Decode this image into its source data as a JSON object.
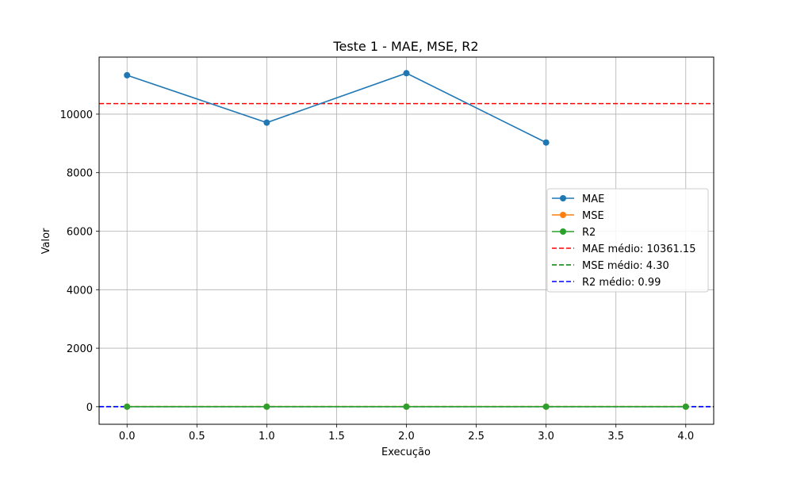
{
  "chart_data": {
    "type": "line",
    "title": "Teste 1 - MAE, MSE, R2",
    "xlabel": "Execução",
    "ylabel": "Valor",
    "xlim": [
      -0.2,
      4.2
    ],
    "ylim": [
      -600,
      11950
    ],
    "xticks": [
      0.0,
      0.5,
      1.0,
      1.5,
      2.0,
      2.5,
      3.0,
      3.5,
      4.0
    ],
    "xtick_labels": [
      "0.0",
      "0.5",
      "1.0",
      "1.5",
      "2.0",
      "2.5",
      "3.0",
      "3.5",
      "4.0"
    ],
    "yticks": [
      0,
      2000,
      4000,
      6000,
      8000,
      10000
    ],
    "ytick_labels": [
      "0",
      "2000",
      "4000",
      "6000",
      "8000",
      "10000"
    ],
    "grid": true,
    "legend_position": "center-right",
    "series": [
      {
        "name": "MAE",
        "color": "#1f77b4",
        "marker": "circle",
        "x": [
          0,
          1,
          2,
          3
        ],
        "values": [
          11330,
          9710,
          11400,
          9030
        ]
      },
      {
        "name": "MSE",
        "color": "#ff7f0e",
        "marker": "circle",
        "x": [
          0,
          1,
          2,
          3,
          4
        ],
        "values": [
          4.3,
          4.3,
          4.3,
          4.3,
          4.3
        ]
      },
      {
        "name": "R2",
        "color": "#2ca02c",
        "marker": "circle",
        "x": [
          0,
          1,
          2,
          3,
          4
        ],
        "values": [
          0.99,
          0.99,
          0.99,
          0.99,
          0.99
        ]
      }
    ],
    "reference_lines": [
      {
        "name": "MAE médio: 10361.15",
        "value": 10361.15,
        "color": "#ff0000",
        "style": "dashed"
      },
      {
        "name": "MSE médio: 4.30",
        "value": 4.3,
        "color": "#008000",
        "style": "dashed"
      },
      {
        "name": "R2 médio: 0.99",
        "value": 0.99,
        "color": "#0000ff",
        "style": "dashed"
      }
    ]
  }
}
